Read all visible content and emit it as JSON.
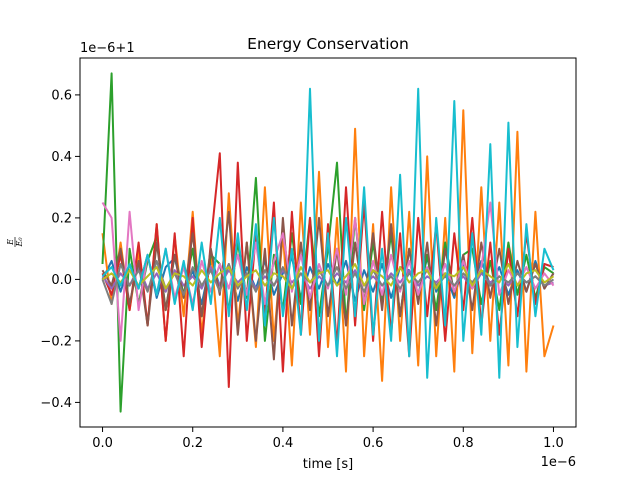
{
  "chart_data": {
    "type": "line",
    "title": "Energy Conservation",
    "xlabel": "time [s]",
    "ylabel": "E/E₀",
    "ylabel_numerator": "E",
    "ylabel_denominator": "E₀",
    "x_offset_label": "1e−6",
    "y_offset_label": "1e−6+1",
    "xlim": [
      -0.05,
      1.05
    ],
    "ylim": [
      -0.48,
      0.72
    ],
    "x_ticks": [
      0.0,
      0.2,
      0.4,
      0.6,
      0.8,
      1.0
    ],
    "x_tick_labels": [
      "0.0",
      "0.2",
      "0.4",
      "0.6",
      "0.8",
      "1.0"
    ],
    "y_ticks": [
      -0.4,
      -0.2,
      0.0,
      0.2,
      0.4,
      0.6
    ],
    "y_tick_labels": [
      "−0.4",
      "−0.2",
      "0.0",
      "0.2",
      "0.4",
      "0.6"
    ],
    "grid": false,
    "legend": "none",
    "series": [
      {
        "color": "#1f77b4",
        "values": [
          0,
          0.06,
          -0.04,
          0.05,
          -0.03,
          0.08,
          -0.06,
          0.04,
          0.07,
          -0.05,
          0.03,
          -0.08,
          0.06,
          -0.02,
          0.05,
          -0.07,
          0.04,
          -0.03,
          0.06,
          -0.05,
          0.02,
          0.07,
          -0.06,
          0.04,
          -0.03,
          0.05,
          -0.02,
          0.06,
          -0.07,
          0.03,
          -0.04,
          0.05,
          -0.06,
          0.04,
          0.03,
          -0.05,
          0.07,
          -0.04,
          0.02,
          -0.06,
          0.05,
          -0.03,
          0.06,
          -0.02,
          0.04,
          -0.05,
          0.03,
          -0.04,
          0.06,
          -0.03,
          0.02
        ]
      },
      {
        "color": "#ff7f0e",
        "values": [
          0.15,
          -0.08,
          0.12,
          -0.1,
          0.09,
          -0.15,
          0.18,
          -0.2,
          0.14,
          -0.12,
          0.22,
          -0.18,
          0.1,
          -0.25,
          0.28,
          -0.15,
          0.12,
          -0.22,
          0.3,
          -0.2,
          0.15,
          -0.28,
          0.25,
          -0.18,
          0.35,
          -0.22,
          0.2,
          -0.3,
          0.49,
          -0.25,
          0.18,
          -0.33,
          0.3,
          -0.2,
          0.22,
          -0.28,
          0.4,
          -0.25,
          0.2,
          -0.3,
          0.55,
          -0.24,
          0.3,
          -0.2,
          0.25,
          -0.28,
          0.48,
          -0.3,
          0.22,
          -0.25,
          -0.15
        ]
      },
      {
        "color": "#2ca02c",
        "values": [
          0.05,
          0.67,
          -0.43,
          0.1,
          -0.08,
          0.06,
          0.14,
          -0.1,
          0.08,
          -0.05,
          0.1,
          -0.12,
          0.08,
          0.05,
          -0.1,
          0.12,
          -0.06,
          0.33,
          -0.2,
          0.08,
          -0.1,
          0.15,
          -0.08,
          0.2,
          -0.12,
          0.1,
          0.38,
          -0.15,
          0.2,
          -0.1,
          0.12,
          -0.08,
          0.15,
          -0.12,
          0.1,
          -0.06,
          0.08,
          -0.1,
          0.12,
          -0.05,
          0.08,
          0.1,
          -0.08,
          0.06,
          -0.1,
          0.12,
          -0.05,
          0.08,
          -0.06,
          0.04,
          0.02
        ]
      },
      {
        "color": "#d62728",
        "values": [
          0.02,
          -0.05,
          0.08,
          -0.1,
          0.12,
          -0.15,
          0.18,
          -0.2,
          0.15,
          -0.25,
          0.2,
          -0.22,
          0.12,
          0.41,
          -0.35,
          0.38,
          -0.2,
          0.15,
          -0.12,
          0.25,
          -0.3,
          0.22,
          -0.18,
          0.2,
          -0.25,
          0.18,
          -0.22,
          0.3,
          -0.15,
          0.25,
          -0.2,
          0.22,
          -0.18,
          0.15,
          -0.25,
          0.2,
          -0.12,
          0.18,
          -0.2,
          0.15,
          -0.1,
          0.2,
          -0.15,
          0.12,
          -0.18,
          0.1,
          -0.12,
          0.15,
          -0.08,
          0.05,
          0.04
        ]
      },
      {
        "color": "#9467bd",
        "values": [
          0.01,
          -0.03,
          0.02,
          -0.02,
          0.04,
          -0.03,
          0.02,
          -0.04,
          0.03,
          -0.02,
          0.01,
          -0.03,
          0.04,
          -0.02,
          0.03,
          -0.01,
          0.02,
          -0.03,
          0.01,
          -0.02,
          0.03,
          -0.01,
          0.02,
          -0.03,
          0.01,
          -0.02,
          0.02,
          -0.01,
          0.03,
          -0.02,
          0.01,
          -0.02,
          0.02,
          -0.01,
          0.03,
          -0.02,
          0.01,
          -0.01,
          0.02,
          -0.02,
          0.01,
          -0.03,
          0.02,
          -0.01,
          0.01,
          -0.02,
          0.02,
          -0.01,
          0.01,
          -0.02,
          -0.01
        ]
      },
      {
        "color": "#8c564b",
        "values": [
          0.03,
          -0.02,
          0.1,
          -0.08,
          0.06,
          -0.15,
          0.12,
          -0.1,
          0.08,
          -0.06,
          0.15,
          -0.12,
          0.1,
          -0.05,
          0.22,
          -0.18,
          0.12,
          -0.2,
          0.1,
          -0.26,
          0.2,
          -0.15,
          0.12,
          -0.1,
          0.2,
          -0.12,
          0.1,
          -0.15,
          0.12,
          -0.08,
          0.15,
          -0.1,
          0.18,
          -0.12,
          0.1,
          -0.08,
          0.12,
          -0.15,
          0.1,
          -0.05,
          0.08,
          -0.1,
          0.12,
          -0.06,
          0.1,
          -0.08,
          0.06,
          -0.04,
          0.05,
          -0.03,
          0.02
        ]
      },
      {
        "color": "#e377c2",
        "values": [
          0.25,
          0.2,
          -0.2,
          0.22,
          -0.1,
          0.08,
          -0.05,
          0.1,
          -0.06,
          0.04,
          -0.08,
          0.06,
          -0.04,
          0.05,
          -0.03,
          0.08,
          -0.05,
          0.12,
          -0.08,
          0.06,
          0.15,
          -0.04,
          0.08,
          -0.06,
          0.05,
          -0.03,
          0.1,
          -0.05,
          0.2,
          -0.08,
          0.06,
          -0.05,
          0.08,
          -0.04,
          0.06,
          -0.05,
          0.04,
          -0.03,
          0.05,
          -0.04,
          0.06,
          -0.03,
          0.04,
          0.25,
          -0.05,
          0.03,
          -0.02,
          0.04,
          -0.03,
          0.02,
          -0.02
        ]
      },
      {
        "color": "#7f7f7f",
        "values": [
          0.0,
          -0.08,
          0.05,
          -0.02,
          0.03,
          -0.04,
          0.06,
          -0.03,
          0.02,
          -0.05,
          0.04,
          -0.02,
          0.03,
          -0.04,
          0.05,
          -0.03,
          0.02,
          -0.04,
          0.03,
          -0.02,
          0.04,
          -0.03,
          0.02,
          -0.01,
          0.03,
          -0.02,
          0.04,
          -0.03,
          0.02,
          -0.04,
          0.03,
          -0.02,
          0.01,
          -0.03,
          0.02,
          -0.01,
          0.03,
          -0.02,
          0.01,
          -0.02,
          0.02,
          -0.01,
          0.03,
          -0.02,
          0.01,
          -0.01,
          0.02,
          -0.01,
          0.01,
          -0.02,
          0.0
        ]
      },
      {
        "color": "#bcbd22",
        "values": [
          0.0,
          0.02,
          -0.01,
          0.03,
          -0.02,
          0.01,
          0.04,
          -0.03,
          0.02,
          0.01,
          -0.02,
          0.03,
          -0.01,
          0.02,
          0.04,
          -0.02,
          0.01,
          0.03,
          -0.02,
          0.02,
          0.01,
          -0.03,
          0.04,
          -0.01,
          0.02,
          0.03,
          -0.02,
          0.01,
          0.05,
          -0.02,
          0.03,
          0.01,
          -0.02,
          0.04,
          -0.01,
          0.02,
          0.03,
          -0.03,
          0.02,
          0.01,
          0.04,
          -0.02,
          0.03,
          0.01,
          -0.01,
          0.05,
          -0.02,
          0.02,
          0.03,
          -0.01,
          0.01
        ]
      },
      {
        "color": "#17becf",
        "values": [
          0.01,
          0.04,
          -0.02,
          0.05,
          -0.03,
          0.08,
          -0.05,
          0.1,
          -0.08,
          0.06,
          -0.1,
          0.12,
          -0.08,
          0.2,
          -0.12,
          0.15,
          -0.1,
          0.18,
          -0.15,
          0.2,
          -0.12,
          0.1,
          -0.18,
          0.62,
          -0.2,
          0.15,
          -0.25,
          0.2,
          -0.12,
          0.3,
          -0.18,
          0.1,
          -0.2,
          0.34,
          -0.25,
          0.62,
          -0.32,
          0.2,
          -0.15,
          0.58,
          -0.2,
          0.15,
          -0.18,
          0.44,
          -0.32,
          0.51,
          -0.22,
          0.18,
          -0.12,
          0.1,
          0.03
        ]
      }
    ]
  }
}
